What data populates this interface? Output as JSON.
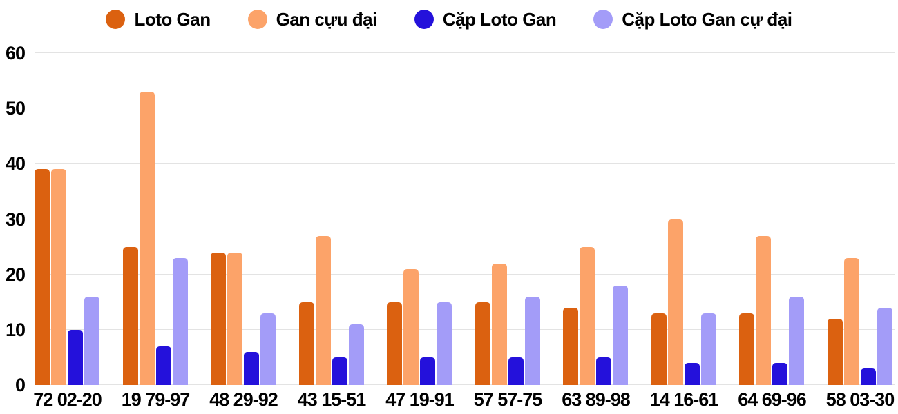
{
  "chart_data": {
    "type": "bar",
    "title": "",
    "xlabel": "",
    "ylabel": "",
    "categories": [
      "72 02-20",
      "19 79-97",
      "48 29-92",
      "43 15-51",
      "47 19-91",
      "57 57-75",
      "63 89-98",
      "14 16-61",
      "64 69-96",
      "58 03-30"
    ],
    "series": [
      {
        "name": "Loto Gan",
        "color": "#DB6110",
        "values": [
          39,
          25,
          24,
          15,
          15,
          15,
          14,
          13,
          13,
          12
        ]
      },
      {
        "name": "Gan cựu đại",
        "color": "#FCA369",
        "values": [
          39,
          53,
          24,
          27,
          21,
          22,
          25,
          30,
          27,
          23
        ]
      },
      {
        "name": "Cặp Loto Gan",
        "color": "#2411DB",
        "values": [
          10,
          7,
          6,
          5,
          5,
          5,
          5,
          4,
          4,
          3
        ]
      },
      {
        "name": "Cặp Loto Gan cự đại",
        "color": "#A39CF8",
        "values": [
          16,
          23,
          13,
          11,
          15,
          16,
          18,
          13,
          16,
          14
        ]
      }
    ],
    "y_ticks": [
      0,
      10,
      20,
      30,
      40,
      50,
      60
    ],
    "ylim": [
      0,
      60
    ],
    "grid": true,
    "legend_position": "top"
  },
  "colors": {
    "background": "#FFFFFF",
    "grid": "#E3E3E3",
    "axis_text": "#000000"
  }
}
